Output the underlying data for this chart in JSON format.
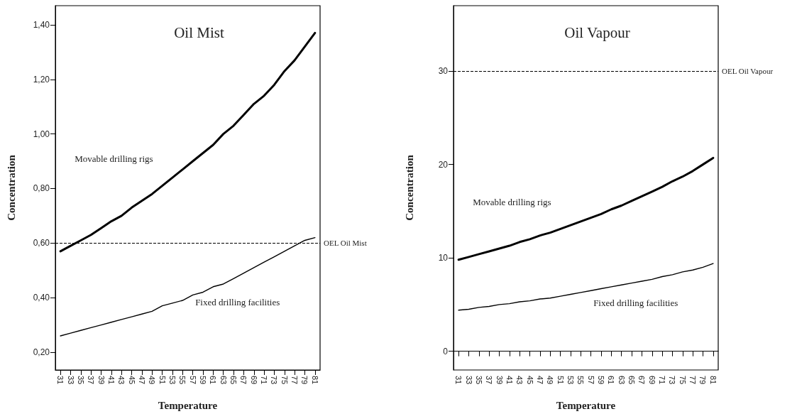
{
  "chart_data": [
    {
      "type": "line",
      "title": "Oil Mist",
      "xlabel": "Temperature",
      "ylabel": "Concentration",
      "categories": [
        "31",
        "33",
        "35",
        "37",
        "39",
        "41",
        "43",
        "45",
        "47",
        "49",
        "51",
        "53",
        "55",
        "57",
        "59",
        "61",
        "63",
        "65",
        "67",
        "69",
        "71",
        "73",
        "75",
        "77",
        "79",
        "81"
      ],
      "series": [
        {
          "name": "Movable drilling rigs",
          "color": "#000000",
          "values": [
            0.57,
            0.59,
            0.61,
            0.63,
            0.655,
            0.68,
            0.7,
            0.73,
            0.755,
            0.78,
            0.81,
            0.84,
            0.87,
            0.9,
            0.93,
            0.96,
            1.0,
            1.03,
            1.07,
            1.11,
            1.14,
            1.18,
            1.23,
            1.27,
            1.32,
            1.37
          ]
        },
        {
          "name": "Fixed drilling facilities",
          "color": "#000000",
          "values": [
            0.26,
            0.27,
            0.28,
            0.29,
            0.3,
            0.31,
            0.32,
            0.33,
            0.34,
            0.35,
            0.37,
            0.38,
            0.39,
            0.41,
            0.42,
            0.44,
            0.45,
            0.47,
            0.49,
            0.51,
            0.53,
            0.55,
            0.57,
            0.59,
            0.61,
            0.62
          ]
        }
      ],
      "ylim": [
        0.135,
        1.47
      ],
      "yticks": [
        {
          "value": 0.2,
          "label": "0,20"
        },
        {
          "value": 0.4,
          "label": "0,40"
        },
        {
          "value": 0.6,
          "label": "0,60"
        },
        {
          "value": 0.8,
          "label": "0,80"
        },
        {
          "value": 1.0,
          "label": "1,00"
        },
        {
          "value": 1.2,
          "label": "1,20"
        },
        {
          "value": 1.4,
          "label": "1,40"
        }
      ],
      "ref_lines": [
        {
          "axis": "y",
          "value": 0.6,
          "label": "OEL Oil Mist",
          "color": "#000000",
          "line_style": "dashed"
        }
      ],
      "grid": false,
      "legend": false,
      "marker": "none",
      "line_style": "solid"
    },
    {
      "type": "line",
      "title": "Oil Vapour",
      "xlabel": "Temperature",
      "ylabel": "Concentration",
      "categories": [
        "31",
        "33",
        "35",
        "37",
        "39",
        "41",
        "43",
        "45",
        "47",
        "49",
        "51",
        "53",
        "55",
        "57",
        "59",
        "61",
        "63",
        "65",
        "67",
        "69",
        "71",
        "73",
        "75",
        "77",
        "79",
        "81"
      ],
      "series": [
        {
          "name": "Movable drilling rigs",
          "color": "#000000",
          "values": [
            9.8,
            10.1,
            10.4,
            10.7,
            11.0,
            11.3,
            11.7,
            12.0,
            12.4,
            12.7,
            13.1,
            13.5,
            13.9,
            14.3,
            14.7,
            15.2,
            15.6,
            16.1,
            16.6,
            17.1,
            17.6,
            18.2,
            18.7,
            19.3,
            20.0,
            20.7
          ]
        },
        {
          "name": "Fixed drilling facilities",
          "color": "#000000",
          "values": [
            4.4,
            4.5,
            4.7,
            4.8,
            5.0,
            5.1,
            5.3,
            5.4,
            5.6,
            5.7,
            5.9,
            6.1,
            6.3,
            6.5,
            6.7,
            6.9,
            7.1,
            7.3,
            7.5,
            7.7,
            8.0,
            8.2,
            8.5,
            8.7,
            9.0,
            9.4
          ]
        }
      ],
      "ylim": [
        -2,
        37
      ],
      "yticks": [
        0,
        10,
        20,
        30
      ],
      "ref_lines": [
        {
          "axis": "y",
          "value": 30,
          "label": "OEL Oil Vapour",
          "color": "#000000",
          "line_style": "dashed"
        }
      ],
      "grid": false,
      "legend": false,
      "marker": "none",
      "line_style": "solid"
    }
  ]
}
